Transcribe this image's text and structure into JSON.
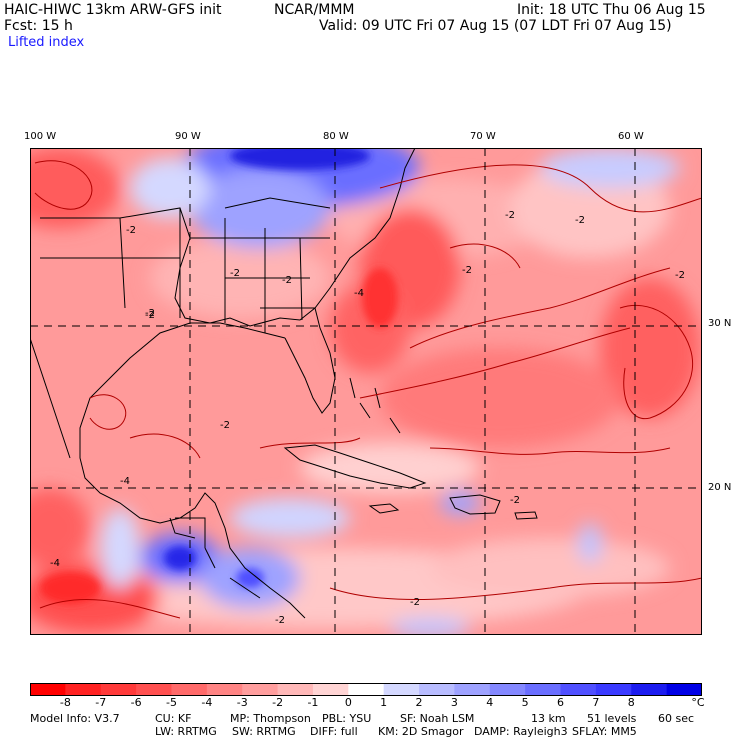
{
  "header": {
    "model_line": "HAIC-HIWC 13km ARW-GFS init",
    "org": "NCAR/MMM",
    "init": "Init: 18 UTC Thu 06 Aug 15",
    "fcst": "Fcst:   15 h",
    "valid": "Valid: 09 UTC Fri 07 Aug 15 (07 LDT Fri 07 Aug 15)",
    "field": "Lifted index"
  },
  "axes": {
    "lon_labels": [
      "100 W",
      "90 W",
      "80 W",
      "70 W",
      "60 W"
    ],
    "lat_labels": [
      "30 N",
      "20 N"
    ]
  },
  "contour_labels": [
    "-2",
    "-2",
    "-2",
    "-2",
    "-2",
    "-2",
    "-4",
    "-2",
    "-2",
    "-4",
    "-2",
    "-2",
    "-2",
    "-4",
    "-2",
    "-2"
  ],
  "colorbar": {
    "ticks": [
      "-8",
      "-7",
      "-6",
      "-5",
      "-4",
      "-3",
      "-2",
      "-1",
      "0",
      "1",
      "2",
      "3",
      "4",
      "5",
      "6",
      "7",
      "8"
    ],
    "unit": "°C",
    "colors": [
      "#ff0000",
      "#ff2222",
      "#ff3a3a",
      "#ff5050",
      "#ff6a6a",
      "#ff8484",
      "#ff9e9e",
      "#ffb8b8",
      "#ffd4d4",
      "#ffffff",
      "#d4d8ff",
      "#b8bcff",
      "#9ea2ff",
      "#8488ff",
      "#6a6eff",
      "#5050ff",
      "#3a3aff",
      "#1c1cf0",
      "#0000e6"
    ]
  },
  "footer": {
    "model_info": "Model Info: V3.7",
    "cu": "CU: KF",
    "mp": "MP: Thompson",
    "pbl": "PBL: YSU",
    "sf": "SF: Noah LSM",
    "res": "13 km",
    "levels": "51 levels",
    "dt": "60 sec",
    "lw": "LW: RRTMG",
    "sw": "SW: RRTMG",
    "diff": "DIFF: full",
    "km": "KM: 2D Smagor",
    "damp": "DAMP: Rayleigh3",
    "sflay": "SFLAY: MM5"
  }
}
